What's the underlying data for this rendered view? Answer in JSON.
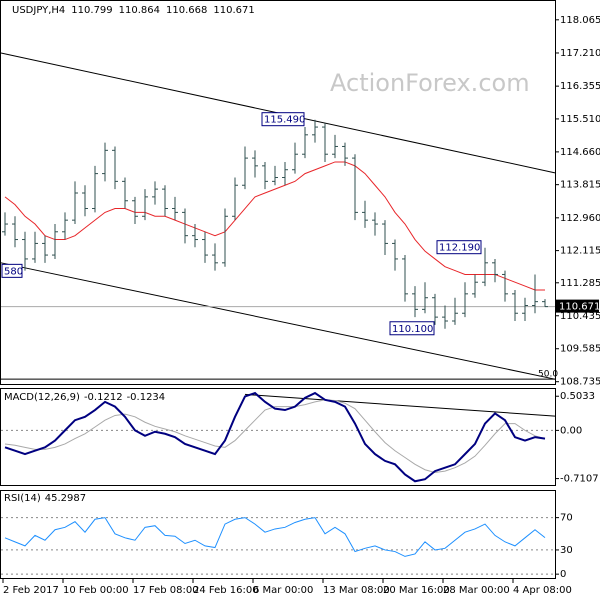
{
  "chart_data": {
    "type": "ohlc",
    "title": "USDJPY,H4",
    "watermark": "ActionForex.com",
    "color": "#2f4f4f",
    "categories": [
      "2 Feb 2017",
      null,
      null,
      null,
      null,
      null,
      "10 Feb 00:00",
      null,
      null,
      null,
      null,
      null,
      null,
      "17 Feb 08:00",
      null,
      null,
      null,
      null,
      null,
      "24 Feb 16:00",
      null,
      null,
      null,
      null,
      null,
      "6 Mar 00:00",
      null,
      null,
      null,
      null,
      null,
      null,
      "13 Mar 08:00",
      null,
      null,
      null,
      null,
      null,
      "20 Mar 16:00",
      null,
      null,
      null,
      null,
      null,
      "28 Mar 00:00",
      null,
      null,
      null,
      null,
      null,
      null,
      "4 Apr 08:00",
      null,
      null,
      null
    ],
    "bars": [
      [
        112.6,
        113.1,
        112.5,
        112.8
      ],
      [
        112.8,
        113.0,
        112.2,
        112.4
      ],
      [
        112.4,
        112.6,
        111.6,
        111.9
      ],
      [
        111.9,
        112.6,
        111.8,
        112.3
      ],
      [
        112.3,
        112.5,
        111.8,
        112.0
      ],
      [
        112.0,
        112.8,
        111.9,
        112.6
      ],
      [
        112.6,
        113.1,
        112.4,
        112.9
      ],
      [
        112.9,
        113.9,
        112.8,
        113.6
      ],
      [
        113.6,
        113.8,
        113.0,
        113.2
      ],
      [
        113.2,
        114.3,
        113.1,
        114.1
      ],
      [
        114.1,
        114.9,
        113.9,
        114.7
      ],
      [
        114.7,
        114.8,
        113.7,
        113.9
      ],
      [
        113.9,
        114.0,
        113.2,
        113.4
      ],
      [
        113.4,
        113.5,
        112.8,
        113.0
      ],
      [
        113.0,
        113.7,
        112.9,
        113.5
      ],
      [
        113.5,
        113.9,
        113.3,
        113.7
      ],
      [
        113.7,
        113.8,
        113.0,
        113.2
      ],
      [
        113.2,
        113.5,
        112.9,
        113.1
      ],
      [
        113.1,
        113.2,
        112.3,
        112.5
      ],
      [
        112.5,
        112.8,
        112.2,
        112.4
      ],
      [
        112.4,
        112.6,
        111.8,
        112.0
      ],
      [
        112.0,
        112.3,
        111.6,
        111.8
      ],
      [
        111.8,
        113.2,
        111.7,
        113.0
      ],
      [
        113.0,
        114.0,
        112.9,
        113.8
      ],
      [
        113.8,
        114.8,
        113.7,
        114.5
      ],
      [
        114.5,
        114.7,
        114.0,
        114.3
      ],
      [
        114.3,
        114.4,
        113.7,
        113.9
      ],
      [
        113.9,
        114.3,
        113.8,
        114.0
      ],
      [
        114.0,
        114.4,
        113.8,
        114.2
      ],
      [
        114.2,
        114.9,
        114.1,
        114.6
      ],
      [
        114.6,
        115.3,
        114.5,
        115.1
      ],
      [
        115.1,
        115.49,
        114.9,
        115.3
      ],
      [
        115.3,
        115.4,
        114.4,
        114.6
      ],
      [
        114.6,
        115.1,
        114.5,
        114.8
      ],
      [
        114.8,
        114.9,
        114.3,
        114.5
      ],
      [
        114.5,
        114.6,
        112.9,
        113.1
      ],
      [
        113.1,
        113.4,
        112.7,
        112.9
      ],
      [
        112.9,
        113.1,
        112.5,
        112.8
      ],
      [
        112.8,
        112.9,
        112.0,
        112.3
      ],
      [
        112.3,
        112.4,
        111.6,
        111.9
      ],
      [
        111.9,
        112.0,
        110.8,
        111.0
      ],
      [
        111.0,
        111.2,
        110.4,
        110.6
      ],
      [
        110.6,
        111.3,
        110.5,
        110.9
      ],
      [
        110.9,
        111.0,
        110.2,
        110.4
      ],
      [
        110.4,
        110.7,
        110.1,
        110.3
      ],
      [
        110.3,
        110.9,
        110.2,
        110.5
      ],
      [
        110.5,
        111.3,
        110.4,
        111.0
      ],
      [
        111.0,
        111.5,
        110.9,
        111.3
      ],
      [
        111.3,
        112.19,
        111.2,
        111.8
      ],
      [
        111.8,
        111.9,
        111.3,
        111.5
      ],
      [
        111.5,
        111.6,
        110.8,
        111.0
      ],
      [
        111.0,
        111.1,
        110.3,
        110.5
      ],
      [
        110.5,
        110.9,
        110.3,
        110.7
      ],
      [
        110.7,
        111.5,
        110.5,
        110.799
      ],
      [
        110.799,
        110.864,
        110.668,
        110.671
      ]
    ],
    "ma": {
      "color": "#e8262a",
      "values": [
        113.5,
        113.3,
        113.0,
        112.8,
        112.5,
        112.4,
        112.4,
        112.5,
        112.7,
        112.9,
        113.1,
        113.2,
        113.2,
        113.1,
        113.1,
        113.0,
        113.0,
        112.9,
        112.8,
        112.7,
        112.6,
        112.5,
        112.6,
        112.9,
        113.2,
        113.5,
        113.6,
        113.7,
        113.8,
        113.9,
        114.1,
        114.2,
        114.3,
        114.4,
        114.4,
        114.3,
        114.1,
        113.8,
        113.5,
        113.1,
        112.8,
        112.4,
        112.1,
        111.9,
        111.7,
        111.6,
        111.5,
        111.5,
        111.5,
        111.5,
        111.4,
        111.3,
        111.2,
        111.1,
        111.1
      ]
    },
    "ylim": [
      108.65,
      118.55
    ],
    "yticks": [
      118.065,
      {
        "value": 117.21,
        "label": "117.210"
      },
      116.355,
      {
        "value": 115.51,
        "label": "115.510"
      },
      {
        "value": 114.66,
        "label": "114.660"
      },
      113.815,
      {
        "value": 112.96,
        "label": "112.960"
      },
      112.115,
      111.285,
      110.435,
      109.585,
      108.735
    ],
    "trendlines": [
      [
        117.21,
        114.12
      ],
      [
        111.8,
        108.8
      ]
    ],
    "annotations": [
      {
        "value": 115.49,
        "label": "115.490"
      },
      {
        "value": 112.19,
        "label": "112.190"
      },
      {
        "value": 110.1,
        "label": "110.100"
      },
      {
        "value": 111.58,
        "label": "580"
      }
    ],
    "fib": {
      "value": 50,
      "label": "50.0",
      "price": 108.8
    },
    "macd": {
      "title": "MACD(12,26,9)",
      "ylim": [
        -0.82,
        0.61
      ],
      "yticks": [
        0.5033,
        {
          "value": 0,
          "label": "0.00"
        },
        -0.7107
      ],
      "trendline": [
        0.53,
        0.21
      ],
      "line": {
        "color": "#000080",
        "values": [
          -0.25,
          -0.3,
          -0.35,
          -0.3,
          -0.25,
          -0.15,
          0.0,
          0.15,
          0.2,
          0.3,
          0.42,
          0.35,
          0.2,
          0.0,
          -0.08,
          -0.02,
          -0.05,
          -0.1,
          -0.2,
          -0.25,
          -0.3,
          -0.35,
          -0.15,
          0.2,
          0.5,
          0.55,
          0.42,
          0.32,
          0.3,
          0.35,
          0.48,
          0.55,
          0.45,
          0.42,
          0.35,
          0.1,
          -0.2,
          -0.35,
          -0.45,
          -0.5,
          -0.65,
          -0.75,
          -0.72,
          -0.6,
          -0.55,
          -0.5,
          -0.35,
          -0.2,
          0.1,
          0.25,
          0.15,
          -0.1,
          -0.15,
          -0.1,
          -0.1212
        ]
      },
      "signal": {
        "color": "#a9a9a9",
        "values": [
          -0.2,
          -0.22,
          -0.25,
          -0.28,
          -0.28,
          -0.25,
          -0.2,
          -0.12,
          -0.05,
          0.05,
          0.15,
          0.22,
          0.24,
          0.2,
          0.12,
          0.06,
          0.02,
          -0.02,
          -0.08,
          -0.13,
          -0.18,
          -0.23,
          -0.25,
          -0.15,
          0.0,
          0.15,
          0.3,
          0.35,
          0.35,
          0.35,
          0.38,
          0.42,
          0.45,
          0.44,
          0.4,
          0.32,
          0.15,
          -0.02,
          -0.18,
          -0.3,
          -0.4,
          -0.5,
          -0.58,
          -0.62,
          -0.6,
          -0.55,
          -0.48,
          -0.38,
          -0.22,
          -0.05,
          0.1,
          0.1,
          0.0,
          -0.08,
          -0.1234
        ]
      }
    },
    "rsi": {
      "title": "RSI(14)",
      "color": "#1e90ff",
      "ylim": [
        -6,
        103
      ],
      "yticks": [
        70,
        30,
        0
      ],
      "values": [
        45,
        40,
        35,
        48,
        42,
        55,
        58,
        65,
        52,
        68,
        70,
        50,
        45,
        42,
        58,
        60,
        48,
        47,
        38,
        42,
        35,
        33,
        62,
        68,
        70,
        62,
        52,
        56,
        58,
        64,
        68,
        70,
        50,
        58,
        50,
        28,
        32,
        35,
        30,
        28,
        22,
        25,
        40,
        30,
        32,
        42,
        52,
        56,
        62,
        48,
        40,
        35,
        45,
        55,
        45.2987
      ]
    }
  }
}
